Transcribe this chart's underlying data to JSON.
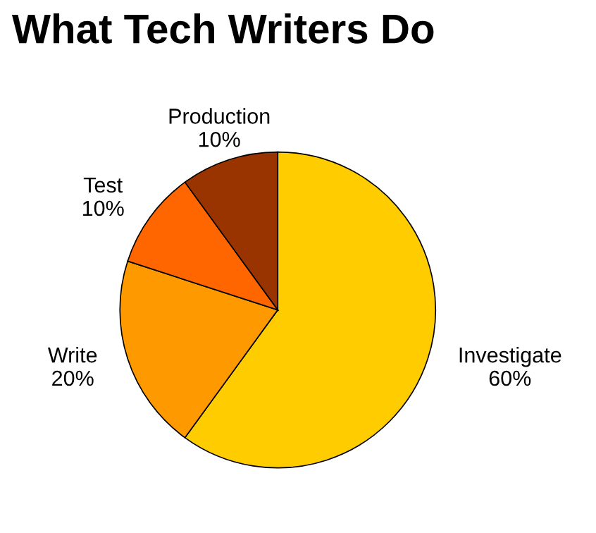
{
  "chart_data": {
    "type": "pie",
    "title": "What Tech Writers Do",
    "categories": [
      "Investigate",
      "Write",
      "Test",
      "Production"
    ],
    "values": [
      60,
      20,
      10,
      10
    ],
    "value_labels": [
      "60%",
      "20%",
      "10%",
      "10%"
    ],
    "colors": [
      "#ffcc00",
      "#ff9900",
      "#ff6600",
      "#993300"
    ],
    "legend": false
  }
}
